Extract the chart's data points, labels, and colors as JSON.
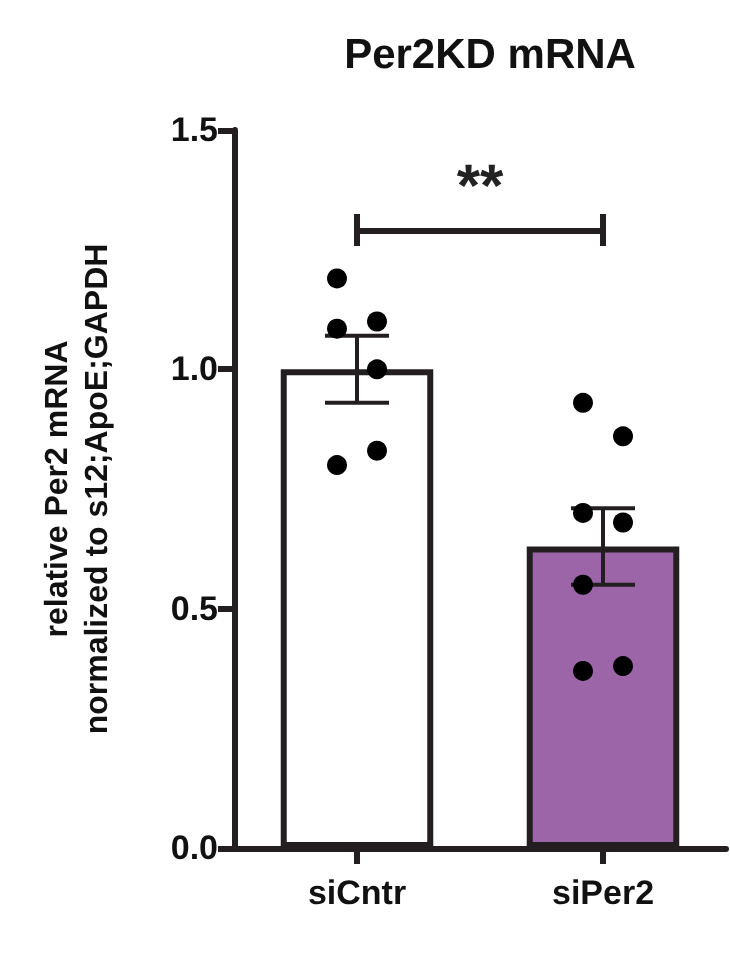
{
  "chart_data": {
    "type": "bar",
    "title": "Per2KD mRNA",
    "ylabel": "relative Per2 mRNA\nnormalized to s12;ApoE;GAPDH",
    "categories": [
      "siCntr",
      "siPer2"
    ],
    "series": [
      {
        "values": [
          1.0,
          0.63
        ],
        "colors": [
          "#ffffff",
          "#9b65a8"
        ],
        "errors": [
          0.07,
          0.08
        ]
      },
      {
        "type": "scatter",
        "color": "#000000",
        "x": [
          "siCntr",
          "siCntr",
          "siCntr",
          "siCntr",
          "siCntr",
          "siCntr",
          "siPer2",
          "siPer2",
          "siPer2",
          "siPer2",
          "siPer2",
          "siPer2",
          "siPer2"
        ],
        "values": [
          1.19,
          1.1,
          1.085,
          1.0,
          0.8,
          0.83,
          0.93,
          0.86,
          0.7,
          0.68,
          0.55,
          0.38,
          0.37
        ]
      }
    ],
    "ylim": [
      0,
      1.5
    ],
    "yticks": [
      {
        "value": 0,
        "label": "0.0"
      },
      {
        "value": 0.5,
        "label": "0.5"
      },
      {
        "value": 1,
        "label": "1.0"
      },
      {
        "value": 1.5,
        "label": "1.5"
      }
    ],
    "grid": false,
    "marker": "circle",
    "annotations": [
      "**"
    ]
  }
}
